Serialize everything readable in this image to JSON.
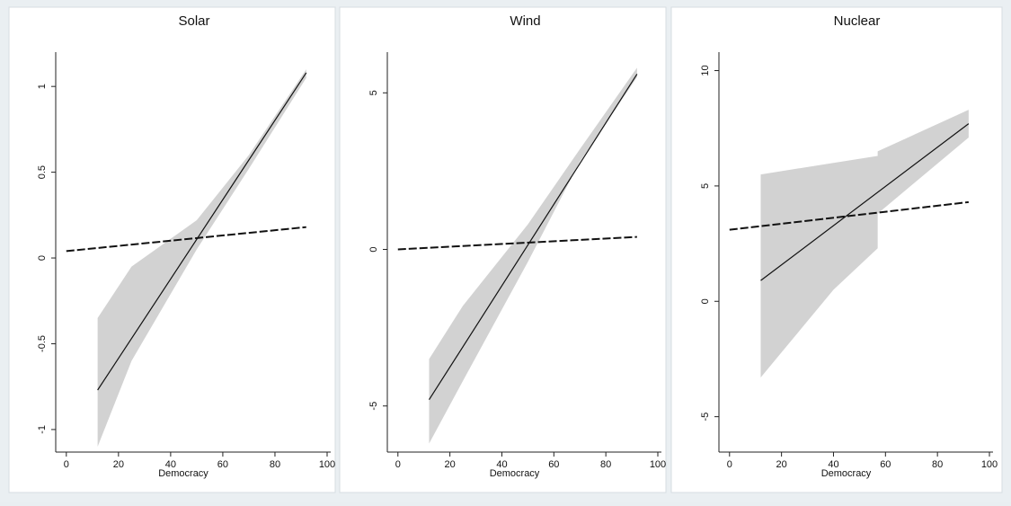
{
  "chart_data": [
    {
      "type": "line",
      "title": "Solar",
      "xlabel": "Democracy",
      "ylabel": "",
      "xlim": [
        -2,
        100
      ],
      "ylim": [
        -1.1,
        1.2
      ],
      "xticks": [
        0,
        20,
        40,
        60,
        80,
        100
      ],
      "yticks": [
        -1,
        -0.5,
        0,
        0.5,
        1
      ],
      "ytick_labels": [
        "-1",
        "-0.5",
        "0",
        "0.5",
        "1"
      ],
      "series": [
        {
          "style": "solid",
          "x": [
            12,
            92
          ],
          "y": [
            -0.77,
            1.08
          ]
        },
        {
          "style": "dashed",
          "x": [
            0,
            92
          ],
          "y": [
            0.04,
            0.18
          ]
        }
      ],
      "ci_band": {
        "x": [
          12,
          25,
          50,
          70,
          92
        ],
        "upper": [
          -0.35,
          -0.05,
          0.22,
          0.6,
          1.1
        ],
        "lower": [
          -1.1,
          -0.6,
          0.05,
          0.52,
          1.05
        ]
      },
      "grid": false
    },
    {
      "type": "line",
      "title": "Wind",
      "xlabel": "Democracy",
      "ylabel": "",
      "xlim": [
        -2,
        100
      ],
      "ylim": [
        -6.3,
        6.3
      ],
      "xticks": [
        0,
        20,
        40,
        60,
        80,
        100
      ],
      "yticks": [
        -5,
        0,
        5
      ],
      "ytick_labels": [
        "-5",
        "0",
        "5"
      ],
      "series": [
        {
          "style": "solid",
          "x": [
            12,
            92
          ],
          "y": [
            -4.8,
            5.6
          ]
        },
        {
          "style": "dashed",
          "x": [
            0,
            92
          ],
          "y": [
            0.0,
            0.4
          ]
        }
      ],
      "ci_band": {
        "x": [
          12,
          25,
          50,
          70,
          92
        ],
        "upper": [
          -3.5,
          -1.8,
          0.8,
          3.2,
          5.8
        ],
        "lower": [
          -6.2,
          -4.2,
          -0.4,
          2.8,
          5.5
        ]
      },
      "grid": false
    },
    {
      "type": "line",
      "title": "Nuclear",
      "xlabel": "Democracy",
      "ylabel": "",
      "xlim": [
        -2,
        100
      ],
      "ylim": [
        -6.3,
        10.8
      ],
      "xticks": [
        0,
        20,
        40,
        60,
        80,
        100
      ],
      "yticks": [
        -5,
        0,
        5,
        10
      ],
      "ytick_labels": [
        "-5",
        "0",
        "5",
        "10"
      ],
      "series": [
        {
          "style": "solid",
          "x": [
            12,
            92
          ],
          "y": [
            0.9,
            7.7
          ]
        },
        {
          "style": "dashed",
          "x": [
            0,
            92
          ],
          "y": [
            3.1,
            4.3
          ]
        }
      ],
      "ci_band": {
        "x": [
          12,
          40,
          57,
          57,
          92
        ],
        "upper": [
          5.5,
          6.0,
          6.3,
          6.5,
          8.3
        ],
        "lower": [
          -3.3,
          0.5,
          2.3,
          3.8,
          7.1
        ]
      },
      "grid": false
    }
  ]
}
